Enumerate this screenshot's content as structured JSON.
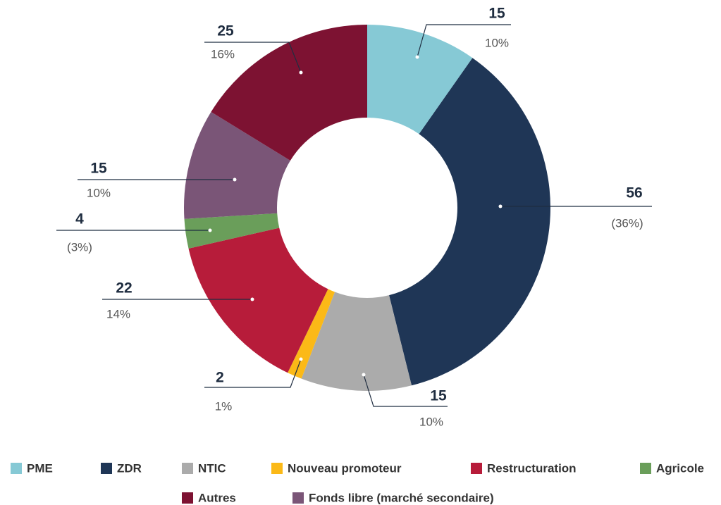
{
  "chart_data": {
    "type": "donut",
    "categories": [
      "PME",
      "ZDR",
      "NTIC",
      "Nouveau promoteur",
      "Restructuration",
      "Agricole",
      "Fonds libre (marché secondaire)",
      "Autres"
    ],
    "values": [
      15,
      56,
      15,
      2,
      22,
      4,
      15,
      25
    ],
    "percent_labels": [
      "10%",
      "(36%)",
      "10%",
      "1%",
      "14%",
      "(3%)",
      "10%",
      "16%"
    ],
    "colors": [
      "#86c9d5",
      "#1f3656",
      "#ababab",
      "#fbb917",
      "#b71c3a",
      "#6a9e5a",
      "#7a5577",
      "#7d1232"
    ]
  }
}
